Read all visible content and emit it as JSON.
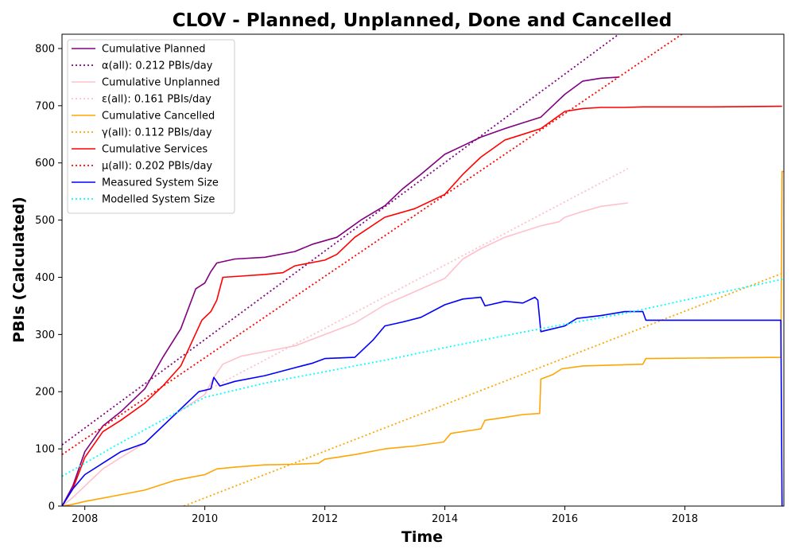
{
  "chart_data": {
    "type": "line",
    "title": "CLOV - Planned, Unplanned, Done  and Cancelled",
    "xlabel": "Time",
    "ylabel": "PBIs (Calculated)",
    "xlim": [
      2007.62,
      2019.65
    ],
    "ylim": [
      0,
      825
    ],
    "xticks": [
      2008,
      2010,
      2012,
      2014,
      2016,
      2018
    ],
    "yticks": [
      0,
      100,
      200,
      300,
      400,
      500,
      600,
      700,
      800
    ],
    "grid": false,
    "legend_position": "top-left",
    "series": [
      {
        "name": "Cumulative Planned",
        "color": "#800080",
        "style": "solid",
        "x": [
          2007.62,
          2007.8,
          2008.0,
          2008.3,
          2008.6,
          2009.0,
          2009.3,
          2009.6,
          2009.85,
          2010.0,
          2010.1,
          2010.2,
          2010.5,
          2011.0,
          2011.5,
          2011.8,
          2012.2,
          2012.6,
          2013.0,
          2013.3,
          2013.6,
          2014.0,
          2014.3,
          2014.6,
          2015.0,
          2015.3,
          2015.6,
          2015.8,
          2016.0,
          2016.3,
          2016.6,
          2016.9
        ],
        "values": [
          0,
          35,
          95,
          140,
          165,
          205,
          260,
          310,
          380,
          390,
          410,
          425,
          432,
          435,
          445,
          458,
          470,
          500,
          525,
          555,
          580,
          615,
          630,
          645,
          660,
          670,
          680,
          700,
          720,
          743,
          748,
          750
        ]
      },
      {
        "name": "α(all): 0.212 PBIs/day",
        "color": "#800080",
        "style": "dotted",
        "x": [
          2007.62,
          2016.9
        ],
        "values": [
          107,
          825
        ]
      },
      {
        "name": "Cumulative Unplanned",
        "color": "#ffc0cb",
        "style": "solid",
        "x": [
          2007.62,
          2007.8,
          2008.0,
          2008.3,
          2008.6,
          2009.0,
          2009.5,
          2010.0,
          2010.15,
          2010.3,
          2010.6,
          2011.0,
          2011.5,
          2012.0,
          2012.5,
          2013.0,
          2013.5,
          2014.0,
          2014.3,
          2014.6,
          2015.0,
          2015.3,
          2015.6,
          2015.9,
          2016.0,
          2016.3,
          2016.6,
          2017.05
        ],
        "values": [
          0,
          15,
          35,
          65,
          85,
          110,
          160,
          195,
          225,
          248,
          262,
          270,
          280,
          300,
          320,
          352,
          375,
          398,
          432,
          450,
          470,
          480,
          490,
          497,
          505,
          515,
          524,
          530
        ]
      },
      {
        "name": "ε(all): 0.161 PBIs/day",
        "color": "#ffc0cb",
        "style": "dotted",
        "x": [
          2010.0,
          2017.05
        ],
        "values": [
          200,
          590
        ]
      },
      {
        "name": "Cumulative Cancelled",
        "color": "#ffa500",
        "style": "solid",
        "x": [
          2007.62,
          2007.8,
          2008.0,
          2008.5,
          2009.0,
          2009.5,
          2010.0,
          2010.2,
          2010.5,
          2011.0,
          2011.5,
          2011.9,
          2012.0,
          2012.5,
          2013.0,
          2013.5,
          2013.98,
          2014.1,
          2014.6,
          2014.67,
          2015.0,
          2015.3,
          2015.58,
          2015.6,
          2015.8,
          2015.95,
          2016.3,
          2017.3,
          2017.35,
          2018.5,
          2019.6,
          2019.62,
          2019.65
        ],
        "values": [
          0,
          3,
          8,
          18,
          28,
          45,
          55,
          65,
          68,
          72,
          73,
          75,
          82,
          90,
          100,
          105,
          112,
          127,
          135,
          150,
          155,
          160,
          162,
          222,
          230,
          240,
          245,
          248,
          258,
          259,
          260,
          585,
          585
        ]
      },
      {
        "name": "γ(all): 0.112 PBIs/day",
        "color": "#ffa500",
        "style": "dotted",
        "x": [
          2009.65,
          2019.65
        ],
        "values": [
          0,
          408
        ]
      },
      {
        "name": "Cumulative Services",
        "color": "#ff0000",
        "style": "solid",
        "x": [
          2007.62,
          2007.8,
          2008.0,
          2008.3,
          2008.6,
          2009.0,
          2009.3,
          2009.6,
          2009.95,
          2010.1,
          2010.2,
          2010.3,
          2010.6,
          2011.0,
          2011.3,
          2011.5,
          2012.0,
          2012.2,
          2012.5,
          2013.0,
          2013.5,
          2014.0,
          2014.3,
          2014.6,
          2015.0,
          2015.3,
          2015.6,
          2016.0,
          2016.3,
          2016.6,
          2017.0,
          2017.3,
          2018.5,
          2019.62
        ],
        "values": [
          0,
          30,
          85,
          130,
          150,
          180,
          210,
          245,
          325,
          340,
          360,
          400,
          402,
          405,
          408,
          420,
          430,
          440,
          470,
          505,
          520,
          545,
          580,
          610,
          640,
          650,
          660,
          690,
          695,
          697,
          697,
          698,
          698,
          699
        ]
      },
      {
        "name": "μ(all): 0.202 PBIs/day",
        "color": "#ff0000",
        "style": "dotted",
        "x": [
          2007.62,
          2017.95
        ],
        "values": [
          90,
          825
        ]
      },
      {
        "name": "Measured System Size",
        "color": "#0000ff",
        "style": "solid",
        "x": [
          2007.62,
          2007.8,
          2008.0,
          2008.3,
          2008.6,
          2009.0,
          2009.3,
          2009.6,
          2009.9,
          2010.1,
          2010.15,
          2010.25,
          2010.5,
          2011.0,
          2011.5,
          2011.8,
          2012.0,
          2012.5,
          2012.8,
          2013.0,
          2013.3,
          2013.6,
          2014.0,
          2014.3,
          2014.6,
          2014.67,
          2015.0,
          2015.3,
          2015.5,
          2015.55,
          2015.6,
          2015.8,
          2016.0,
          2016.2,
          2016.6,
          2017.0,
          2017.3,
          2017.35,
          2018.5,
          2019.6,
          2019.62
        ],
        "values": [
          0,
          30,
          55,
          75,
          95,
          110,
          140,
          170,
          200,
          205,
          225,
          210,
          218,
          228,
          242,
          250,
          258,
          260,
          290,
          315,
          322,
          330,
          352,
          362,
          365,
          350,
          358,
          355,
          365,
          360,
          305,
          310,
          315,
          328,
          333,
          340,
          340,
          325,
          325,
          325,
          0
        ]
      },
      {
        "name": "Modelled System Size",
        "color": "#00ffff",
        "style": "dotted",
        "x": [
          2007.62,
          2008.5,
          2009.5,
          2010.0,
          2011.0,
          2012.0,
          2013.0,
          2014.0,
          2015.0,
          2016.0,
          2017.0,
          2018.0,
          2019.65
        ],
        "values": [
          52,
          105,
          162,
          190,
          215,
          235,
          255,
          277,
          298,
          318,
          337,
          360,
          397
        ]
      }
    ]
  }
}
